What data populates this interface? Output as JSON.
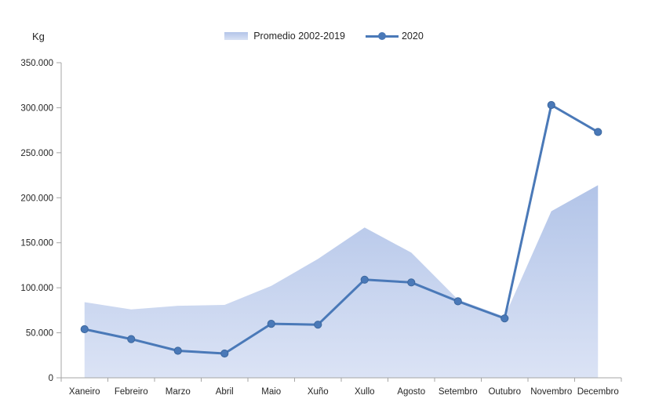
{
  "legend": {
    "series1_label": "Promedio 2002-2019",
    "series2_label": "2020"
  },
  "colors": {
    "line": "#4a79b8",
    "marker": "#4a79b8",
    "marker_edge": "#3d689f",
    "area_top": "#b2c4e8",
    "area_bottom": "#dbe3f5",
    "axis": "#a6a6a6",
    "text": "#262626"
  },
  "chart_data": {
    "type": "area",
    "title": "",
    "ylabel": "Kg",
    "xlabel": "",
    "categories": [
      "Xaneiro",
      "Febreiro",
      "Marzo",
      "Abril",
      "Maio",
      "Xuño",
      "Xullo",
      "Agosto",
      "Setembro",
      "Outubro",
      "Novembro",
      "Decembro"
    ],
    "series": [
      {
        "name": "Promedio 2002-2019",
        "type": "area",
        "values": [
          84000,
          76000,
          80000,
          81000,
          102000,
          132000,
          167000,
          139000,
          87000,
          68000,
          185000,
          214000
        ]
      },
      {
        "name": "2020",
        "type": "line",
        "values": [
          54000,
          43000,
          30000,
          27000,
          60000,
          59000,
          109000,
          106000,
          85000,
          66000,
          303000,
          273000
        ]
      }
    ],
    "ylim": [
      0,
      350000
    ],
    "ytick_step": 50000,
    "ytick_labels": [
      "0",
      "50.000",
      "100.000",
      "150.000",
      "200.000",
      "250.000",
      "300.000",
      "350.000"
    ],
    "grid": false,
    "legend_position": "top-center"
  }
}
